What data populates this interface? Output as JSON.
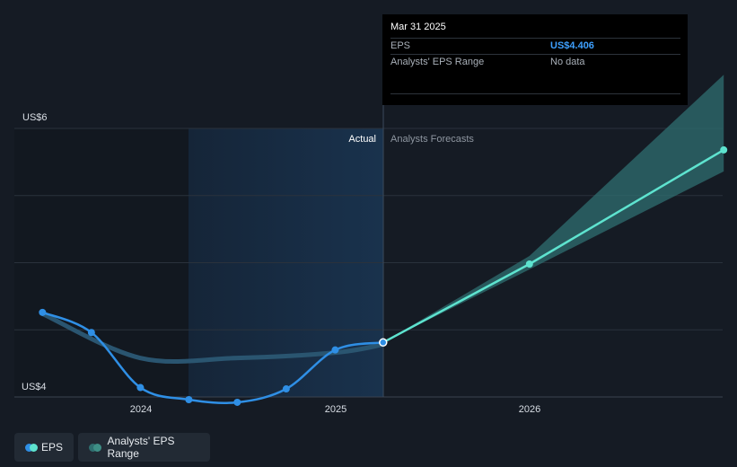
{
  "chart_data": {
    "type": "line",
    "y_axis_labels": {
      "top": "US$6",
      "bottom": "US$4"
    },
    "ylim": [
      4,
      6
    ],
    "x_ticks": [
      "2024",
      "2025",
      "2026"
    ],
    "region_labels": {
      "actual": "Actual",
      "forecast": "Analysts Forecasts"
    },
    "series": [
      {
        "name": "EPS",
        "color": "#2f8fe5",
        "points": [
          {
            "date": "2023-06-30",
            "value": 4.63
          },
          {
            "date": "2023-09-30",
            "value": 4.48
          },
          {
            "date": "2023-12-31",
            "value": 4.07
          },
          {
            "date": "2024-03-31",
            "value": 3.98
          },
          {
            "date": "2024-06-30",
            "value": 3.96
          },
          {
            "date": "2024-09-30",
            "value": 4.06
          },
          {
            "date": "2024-12-31",
            "value": 4.35
          },
          {
            "date": "2025-03-31",
            "value": 4.406
          }
        ]
      },
      {
        "name": "EPS forecast",
        "color": "#5ee3cf",
        "points": [
          {
            "date": "2025-03-31",
            "value": 4.406
          },
          {
            "date": "2025-12-31",
            "value": 4.99
          },
          {
            "date": "2026-12-31",
            "value": 5.84
          }
        ]
      },
      {
        "name": "Analysts' EPS Range",
        "color": "#2f6f70",
        "band": [
          {
            "date": "2025-03-31",
            "low": 4.406,
            "high": 4.406
          },
          {
            "date": "2025-12-31",
            "low": 4.95,
            "high": 5.05
          },
          {
            "date": "2026-12-31",
            "low": 5.68,
            "high": 6.4
          }
        ]
      }
    ],
    "historical_range_line": [
      {
        "date": "2023-06-30",
        "value": 4.62
      },
      {
        "date": "2023-12-31",
        "value": 4.29
      },
      {
        "date": "2024-06-30",
        "value": 4.29
      },
      {
        "date": "2024-12-31",
        "value": 4.33
      },
      {
        "date": "2025-03-31",
        "value": 4.39
      }
    ]
  },
  "tooltip": {
    "date": "Mar 31 2025",
    "rows": [
      {
        "label": "EPS",
        "value": "US$4.406"
      },
      {
        "label": "Analysts' EPS Range",
        "value": "No data"
      }
    ]
  },
  "legend": [
    {
      "label": "EPS",
      "colors": [
        "#2f8fe5",
        "#5ee3cf"
      ]
    },
    {
      "label": "Analysts' EPS Range",
      "colors": [
        "#2f6f70",
        "#3e8f86"
      ]
    }
  ]
}
